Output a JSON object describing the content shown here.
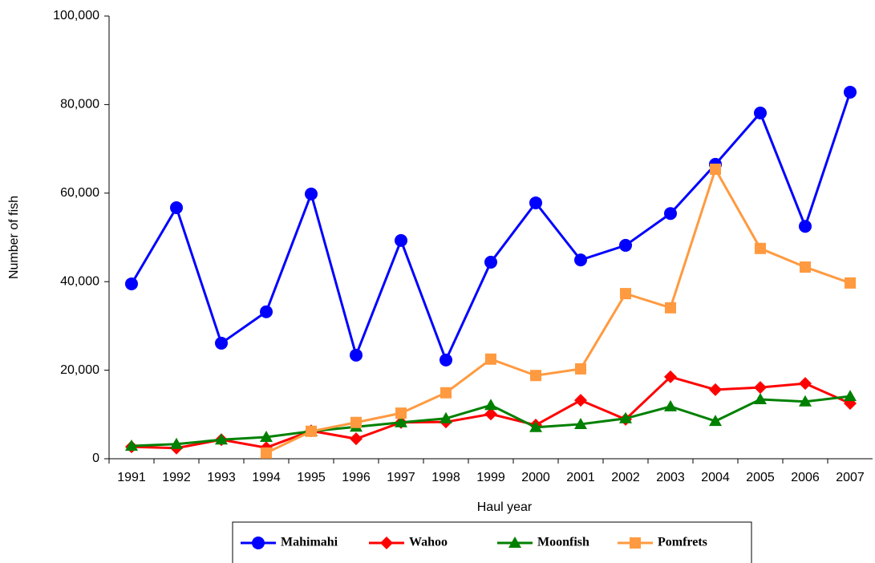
{
  "chart_data": {
    "type": "line",
    "x_label": "Haul year",
    "y_label": "Number of fish",
    "categories": [
      "1991",
      "1992",
      "1993",
      "1994",
      "1995",
      "1996",
      "1997",
      "1998",
      "1999",
      "2000",
      "2001",
      "2002",
      "2003",
      "2004",
      "2005",
      "2006",
      "2007"
    ],
    "ylim": [
      0,
      100000
    ],
    "yticks": [
      0,
      {
        "value": 20000,
        "label": "20,000"
      },
      {
        "value": 40000,
        "label": "40,000"
      },
      {
        "value": 60000,
        "label": "60,000"
      },
      {
        "value": 80000,
        "label": "80,000"
      },
      {
        "value": 100000,
        "label": "100,000"
      }
    ],
    "legend": "bottom",
    "series": [
      {
        "name": "Mahimahi",
        "color": "#0000ff",
        "marker": "circle",
        "values": [
          39500,
          56700,
          26100,
          33200,
          59800,
          23400,
          49300,
          22300,
          44400,
          57800,
          44900,
          48200,
          55400,
          66500,
          78100,
          52500,
          82800
        ]
      },
      {
        "name": "Wahoo",
        "color": "#ff0000",
        "marker": "diamond",
        "values": [
          2700,
          2400,
          4300,
          2500,
          6300,
          4500,
          8200,
          8300,
          10100,
          7600,
          13200,
          8900,
          18500,
          15600,
          16100,
          17000,
          12500
        ]
      },
      {
        "name": "Moonfish",
        "color": "#008000",
        "marker": "triangle",
        "values": [
          2900,
          3300,
          4300,
          4900,
          6200,
          7200,
          8200,
          9100,
          12100,
          7100,
          7800,
          9100,
          11800,
          8500,
          13400,
          12900,
          14100
        ]
      },
      {
        "name": "Pomfrets",
        "color": "#ff9a40",
        "marker": "square",
        "values": [
          null,
          null,
          null,
          1300,
          6200,
          8200,
          10300,
          14900,
          22500,
          18800,
          20300,
          37300,
          34100,
          65400,
          47500,
          43300,
          39700
        ]
      }
    ]
  }
}
